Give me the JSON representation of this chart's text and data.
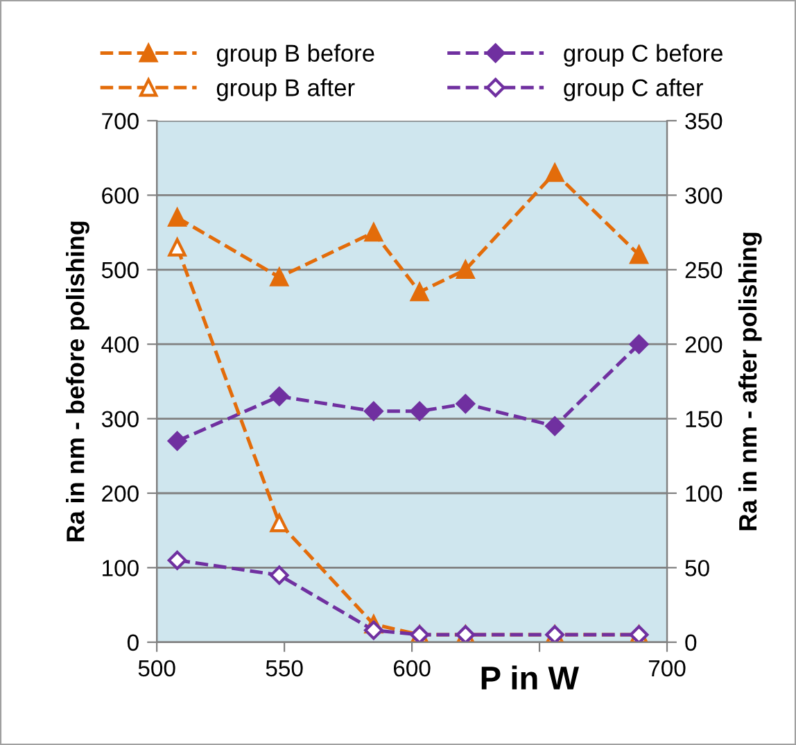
{
  "chart_data": {
    "type": "line",
    "xlabel": "P in W",
    "ylabel": "Ra in nm - before polishing",
    "y2label": "Ra in nm - after polishing",
    "x": [
      508,
      548,
      585,
      603,
      621,
      656,
      689
    ],
    "series": [
      {
        "name": "group B before",
        "color": "#e36c0a",
        "marker": "triangle",
        "values": [
          570,
          490,
          550,
          470,
          500,
          630,
          520
        ]
      },
      {
        "name": "group B after",
        "color": "#e36c0a",
        "marker": "triangle",
        "axis": "y2",
        "values": [
          265,
          80,
          12,
          5,
          5,
          5,
          5
        ]
      },
      {
        "name": "group C before",
        "color": "#7030a0",
        "marker": "diamond",
        "values": [
          270,
          330,
          310,
          310,
          320,
          290,
          400
        ]
      },
      {
        "name": "group C after",
        "color": "#7030a0",
        "marker": "diamond",
        "axis": "y2",
        "values": [
          55,
          45,
          8,
          5,
          5,
          5,
          5
        ]
      }
    ],
    "xlim": [
      500,
      700
    ],
    "xticks": [
      500,
      550,
      600,
      {
        "value": 650,
        "label": null
      },
      700
    ],
    "ylim": [
      0,
      700
    ],
    "yticks": [
      0,
      100,
      200,
      300,
      400,
      500,
      600,
      700
    ],
    "y2lim": [
      0,
      350
    ],
    "y2ticks": [
      0,
      50,
      100,
      150,
      200,
      250,
      300,
      350
    ],
    "grid": "y",
    "legend": "top",
    "line_style": "dashed"
  }
}
